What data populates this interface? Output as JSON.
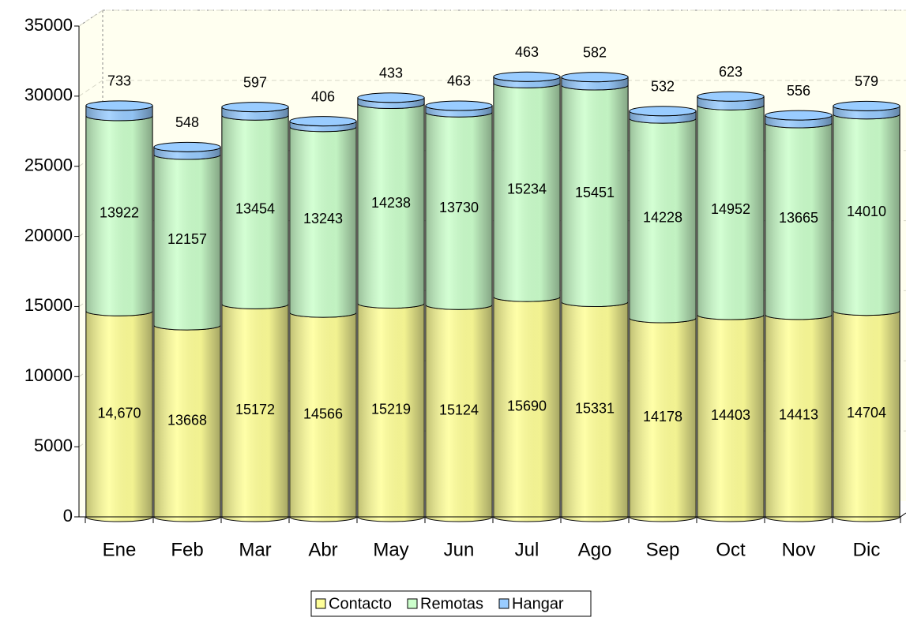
{
  "chart_data": {
    "type": "bar3d",
    "categories": [
      "Ene",
      "Feb",
      "Mar",
      "Abr",
      "May",
      "Jun",
      "Jul",
      "Ago",
      "Sep",
      "Oct",
      "Nov",
      "Dic"
    ],
    "series": [
      {
        "name": "Contacto",
        "color": "#ffff99",
        "values": [
          14670,
          13668,
          15172,
          14566,
          15219,
          15124,
          15690,
          15331,
          14178,
          14403,
          14413,
          14704
        ],
        "value_labels": [
          "14,670",
          "13668",
          "15172",
          "14566",
          "15219",
          "15124",
          "15690",
          "15331",
          "14178",
          "14403",
          "14413",
          "14704"
        ]
      },
      {
        "name": "Remotas",
        "color": "#ccffcc",
        "values": [
          13922,
          12157,
          13454,
          13243,
          14238,
          13730,
          15234,
          15451,
          14228,
          14952,
          13665,
          14010
        ]
      },
      {
        "name": "Hangar",
        "color": "#99ccff",
        "values": [
          733,
          548,
          597,
          406,
          433,
          463,
          463,
          582,
          532,
          623,
          556,
          579
        ]
      }
    ],
    "ylim": [
      0,
      35000
    ],
    "yticks": [
      0,
      5000,
      10000,
      15000,
      20000,
      25000,
      30000,
      35000
    ],
    "grid": true,
    "legend": "bottom"
  }
}
